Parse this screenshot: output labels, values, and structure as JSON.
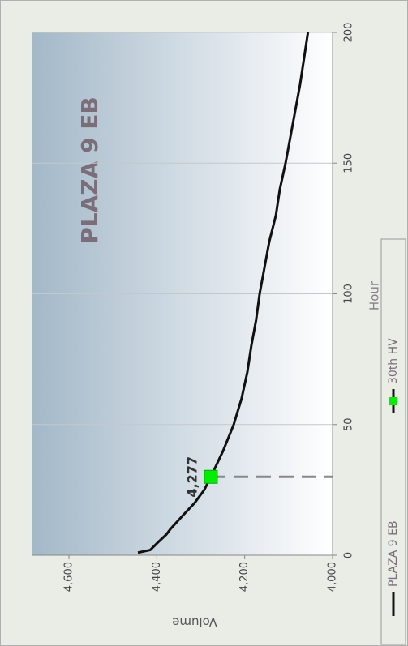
{
  "chart_data": {
    "type": "line",
    "title": "PLAZA 9 EB",
    "x_label": "Hour",
    "y_label": "Volume",
    "xlim": [
      0,
      200
    ],
    "xticks": [
      0,
      50,
      100,
      150,
      200
    ],
    "ylim": [
      4000,
      4600
    ],
    "yticks": [
      {
        "value": 4000,
        "label": "4,000"
      },
      {
        "value": 4200,
        "label": "4,200"
      },
      {
        "value": 4400,
        "label": "4,400"
      },
      {
        "value": 4600,
        "label": "4,600"
      }
    ],
    "grid": "x",
    "legend": "bottom",
    "series": [
      {
        "name": "PLAZA 9 EB",
        "color": "#111111",
        "x": [
          1,
          2,
          5,
          8,
          10,
          15,
          20,
          25,
          30,
          40,
          50,
          60,
          70,
          80,
          90,
          100,
          110,
          120,
          130,
          140,
          150,
          160,
          170,
          180,
          190,
          200
        ],
        "values": [
          4443,
          4415,
          4397,
          4378,
          4369,
          4342,
          4314,
          4292,
          4277,
          4249,
          4225,
          4207,
          4194,
          4185,
          4174,
          4166,
          4155,
          4144,
          4129,
          4120,
          4107,
          4096,
          4085,
          4074,
          4065,
          4056
        ]
      },
      {
        "name": "30th HV",
        "color": "#00ee00",
        "x": [
          30
        ],
        "values": [
          4277
        ],
        "value_labels": [
          "4,277"
        ]
      }
    ]
  }
}
